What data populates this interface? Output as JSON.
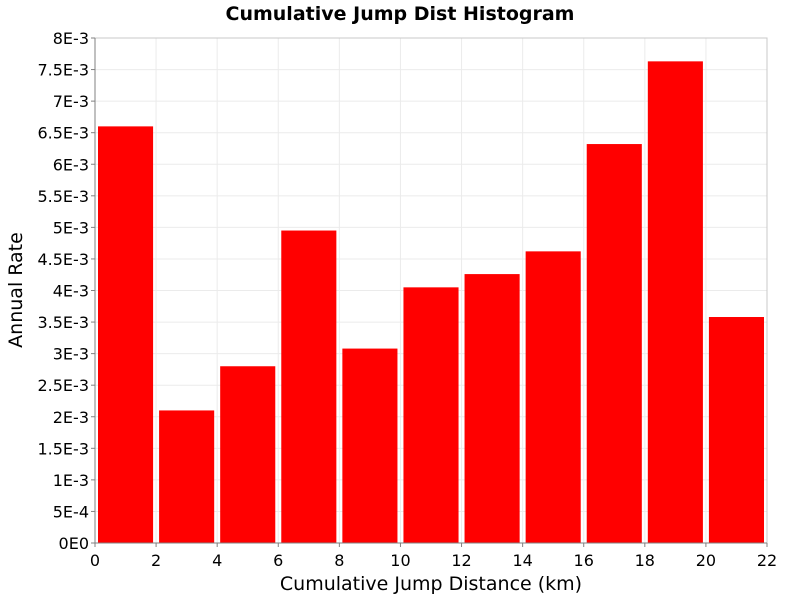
{
  "chart_data": {
    "type": "bar",
    "title": "Cumulative Jump Dist Histogram",
    "xlabel": "Cumulative Jump Distance (km)",
    "ylabel": "Annual Rate",
    "xlim": [
      0,
      22
    ],
    "ylim": [
      0,
      0.008
    ],
    "bin_width": 2,
    "bins": [
      {
        "x_start": 0,
        "x_end": 2,
        "value": 0.0066
      },
      {
        "x_start": 2,
        "x_end": 4,
        "value": 0.0021
      },
      {
        "x_start": 4,
        "x_end": 6,
        "value": 0.0028
      },
      {
        "x_start": 6,
        "x_end": 8,
        "value": 0.00495
      },
      {
        "x_start": 8,
        "x_end": 10,
        "value": 0.00308
      },
      {
        "x_start": 10,
        "x_end": 12,
        "value": 0.00405
      },
      {
        "x_start": 12,
        "x_end": 14,
        "value": 0.00426
      },
      {
        "x_start": 14,
        "x_end": 16,
        "value": 0.00462
      },
      {
        "x_start": 16,
        "x_end": 18,
        "value": 0.00632
      },
      {
        "x_start": 18,
        "x_end": 20,
        "value": 0.00763
      },
      {
        "x_start": 20,
        "x_end": 22,
        "value": 0.00358
      }
    ],
    "x_ticks": [
      {
        "value": 0,
        "label": "0"
      },
      {
        "value": 2,
        "label": "2"
      },
      {
        "value": 4,
        "label": "4"
      },
      {
        "value": 6,
        "label": "6"
      },
      {
        "value": 8,
        "label": "8"
      },
      {
        "value": 10,
        "label": "10"
      },
      {
        "value": 12,
        "label": "12"
      },
      {
        "value": 14,
        "label": "14"
      },
      {
        "value": 16,
        "label": "16"
      },
      {
        "value": 18,
        "label": "18"
      },
      {
        "value": 20,
        "label": "20"
      },
      {
        "value": 22,
        "label": "22"
      }
    ],
    "y_ticks": [
      {
        "value": 0,
        "label": "0E0"
      },
      {
        "value": 0.0005,
        "label": "5E-4"
      },
      {
        "value": 0.001,
        "label": "1E-3"
      },
      {
        "value": 0.0015,
        "label": "1.5E-3"
      },
      {
        "value": 0.002,
        "label": "2E-3"
      },
      {
        "value": 0.0025,
        "label": "2.5E-3"
      },
      {
        "value": 0.003,
        "label": "3E-3"
      },
      {
        "value": 0.0035,
        "label": "3.5E-3"
      },
      {
        "value": 0.004,
        "label": "4E-3"
      },
      {
        "value": 0.0045,
        "label": "4.5E-3"
      },
      {
        "value": 0.005,
        "label": "5E-3"
      },
      {
        "value": 0.0055,
        "label": "5.5E-3"
      },
      {
        "value": 0.006,
        "label": "6E-3"
      },
      {
        "value": 0.0065,
        "label": "6.5E-3"
      },
      {
        "value": 0.007,
        "label": "7E-3"
      },
      {
        "value": 0.0075,
        "label": "7.5E-3"
      },
      {
        "value": 0.008,
        "label": "8E-3"
      }
    ],
    "grid": true,
    "legend": "none",
    "colors": {
      "bar": "#ff0000",
      "background": "#ffffff",
      "grid": "#ebebeb",
      "axis": "#808080"
    }
  }
}
